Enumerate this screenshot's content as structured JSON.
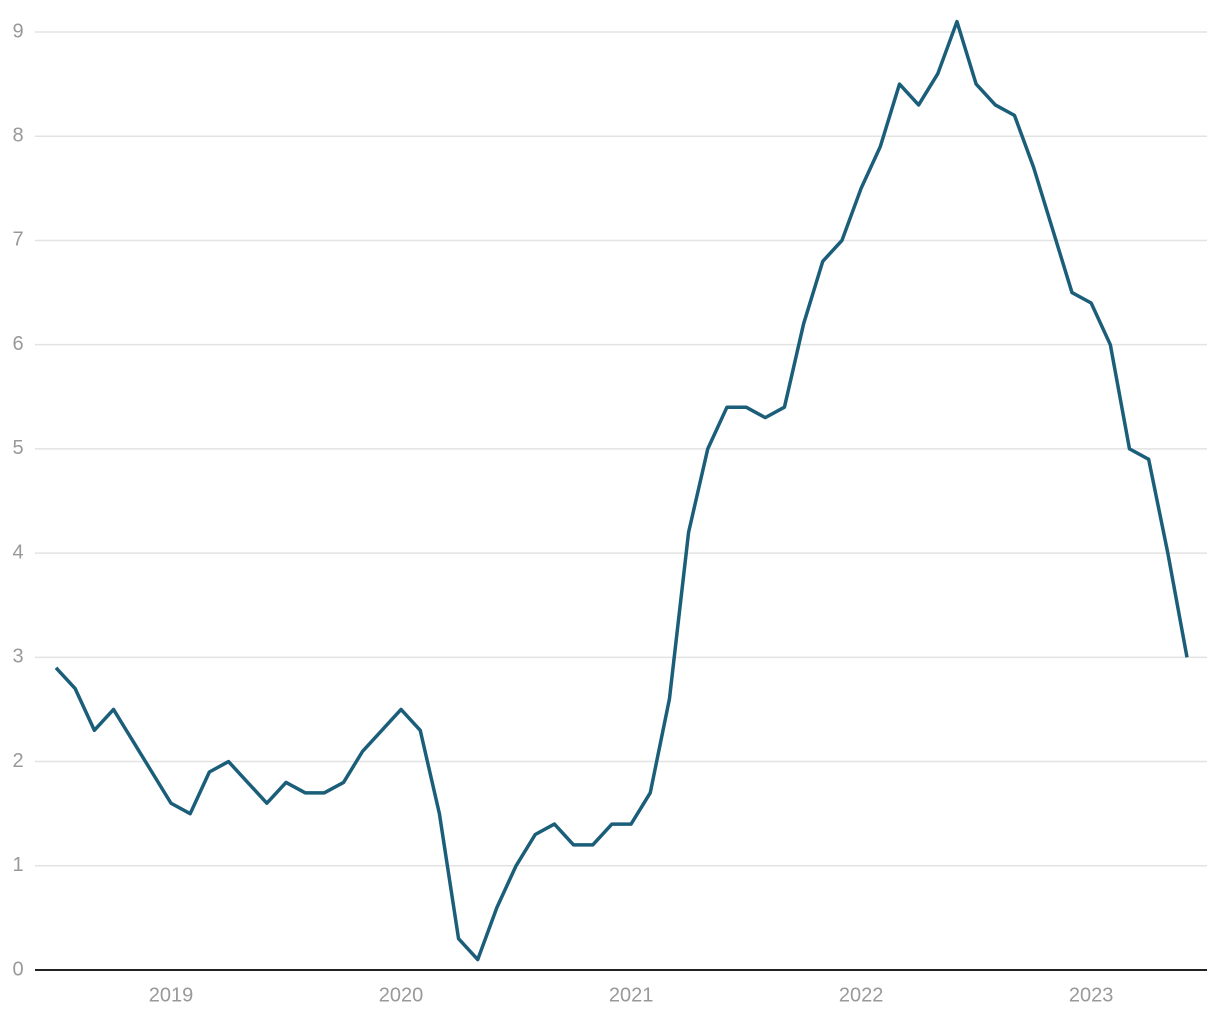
{
  "chart_data": {
    "type": "line",
    "categories": [
      null,
      null,
      null,
      null,
      null,
      null,
      "2019",
      null,
      null,
      null,
      null,
      null,
      null,
      null,
      null,
      null,
      null,
      null,
      "2020",
      null,
      null,
      null,
      null,
      null,
      null,
      null,
      null,
      null,
      null,
      null,
      "2021",
      null,
      null,
      null,
      null,
      null,
      null,
      null,
      null,
      null,
      null,
      null,
      "2022",
      null,
      null,
      null,
      null,
      null,
      null,
      null,
      null,
      null,
      null,
      null,
      "2023",
      null,
      null,
      null,
      null,
      null
    ],
    "values": [
      2.9,
      2.7,
      2.3,
      2.5,
      2.2,
      1.9,
      1.6,
      1.5,
      1.9,
      2.0,
      1.8,
      1.6,
      1.8,
      1.7,
      1.7,
      1.8,
      2.1,
      2.3,
      2.5,
      2.3,
      1.5,
      0.3,
      0.1,
      0.6,
      1.0,
      1.3,
      1.4,
      1.2,
      1.2,
      1.4,
      1.4,
      1.7,
      2.6,
      4.2,
      5.0,
      5.4,
      5.4,
      5.3,
      5.4,
      6.2,
      6.8,
      7.0,
      7.5,
      7.9,
      8.5,
      8.3,
      8.6,
      9.1,
      8.5,
      8.3,
      8.2,
      7.7,
      7.1,
      6.5,
      6.4,
      6.0,
      5.0,
      4.9,
      4.0,
      3.0
    ],
    "color": "#1b5e7a",
    "ylim": [
      0,
      9
    ],
    "yticks": [
      0,
      1,
      2,
      3,
      4,
      5,
      6,
      7,
      8,
      9
    ],
    "grid": true
  }
}
